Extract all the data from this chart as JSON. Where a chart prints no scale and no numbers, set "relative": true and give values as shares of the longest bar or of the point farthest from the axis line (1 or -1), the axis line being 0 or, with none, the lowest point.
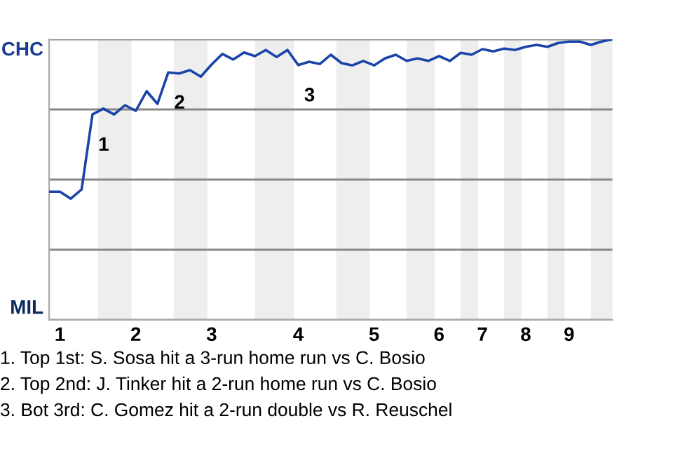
{
  "chart_data": {
    "type": "line",
    "relative": true,
    "categories": [
      null,
      "1",
      null,
      null,
      null,
      null,
      null,
      null,
      "2",
      null,
      null,
      null,
      null,
      null,
      null,
      "3",
      null,
      null,
      null,
      null,
      null,
      null,
      null,
      "4",
      null,
      null,
      null,
      null,
      null,
      null,
      "5",
      null,
      null,
      null,
      null,
      null,
      "6",
      null,
      null,
      null,
      "7",
      null,
      null,
      null,
      "8",
      null,
      null,
      null,
      "9",
      null,
      null,
      null,
      null
    ],
    "series": [
      {
        "color": "#1a45a8",
        "values": [
          0.457,
          0.457,
          0.432,
          0.465,
          0.732,
          0.753,
          0.732,
          0.765,
          0.745,
          0.815,
          0.77,
          0.882,
          0.878,
          0.89,
          0.867,
          0.91,
          0.948,
          0.928,
          0.953,
          0.94,
          0.962,
          0.937,
          0.962,
          0.908,
          0.92,
          0.912,
          0.945,
          0.915,
          0.907,
          0.923,
          0.907,
          0.932,
          0.945,
          0.923,
          0.932,
          0.923,
          0.94,
          0.923,
          0.952,
          0.945,
          0.965,
          0.957,
          0.967,
          0.962,
          0.973,
          0.98,
          0.973,
          0.987,
          0.992,
          0.992,
          0.98,
          0.992,
          1
        ]
      }
    ],
    "grid": "y",
    "marker": "none",
    "line_style": "solid",
    "legend": false,
    "annotations": [
      "CHC",
      "MIL",
      {
        "text": "1",
        "y": 0.732
      },
      {
        "text": "2",
        "y": 0.882
      },
      {
        "text": "3",
        "y": 0.908
      },
      "1. Top 1st: S. Sosa hit a 3-run home run vs C. Bosio",
      "2. Top 2nd: J. Tinker hit a 2-run home run vs C. Bosio",
      "3. Bot 3rd: C. Gomez hit a 2-run double vs R. Reuschel"
    ]
  }
}
